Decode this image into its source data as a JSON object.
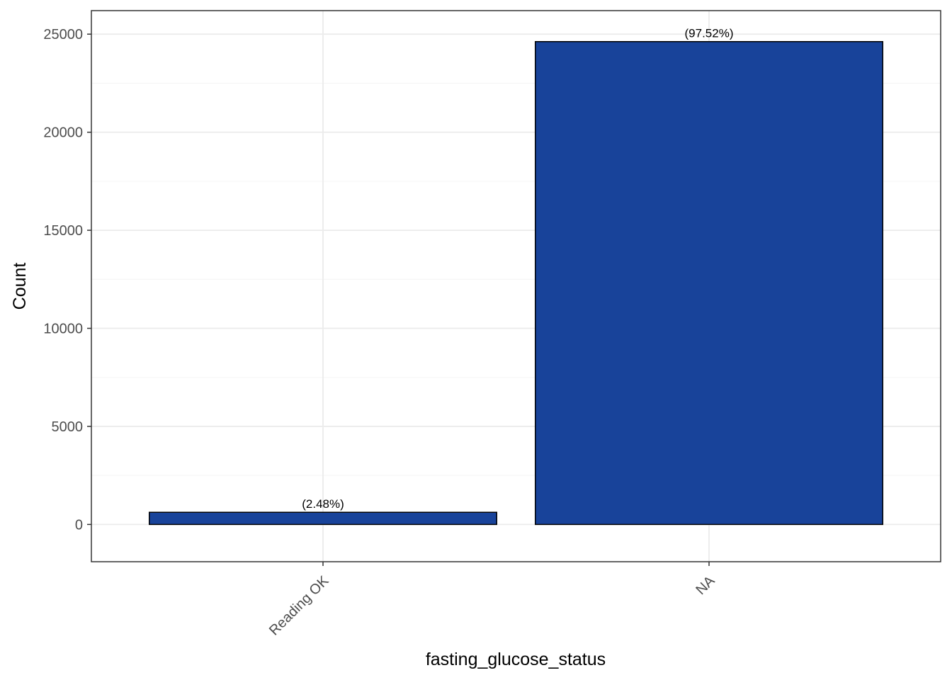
{
  "chart_data": {
    "type": "bar",
    "title": "",
    "xlabel": "fasting_glucose_status",
    "ylabel": "Count",
    "categories": [
      "Reading OK",
      "NA"
    ],
    "values": [
      620,
      24620
    ],
    "bar_labels": [
      "(2.48%)",
      "(97.52%)"
    ],
    "ylim": [
      -1900,
      26200
    ],
    "yticks": [
      0,
      5000,
      10000,
      15000,
      20000,
      25000
    ],
    "ytick_labels": [
      "0",
      "5000",
      "10000",
      "15000",
      "20000",
      "25000"
    ],
    "grid": true,
    "legend": "none",
    "colors": {
      "bar_fill": "#18439A",
      "bar_stroke": "#000000",
      "panel_border": "#333333",
      "grid_major": "#ebebeb",
      "grid_minor": "#f5f5f5"
    }
  }
}
